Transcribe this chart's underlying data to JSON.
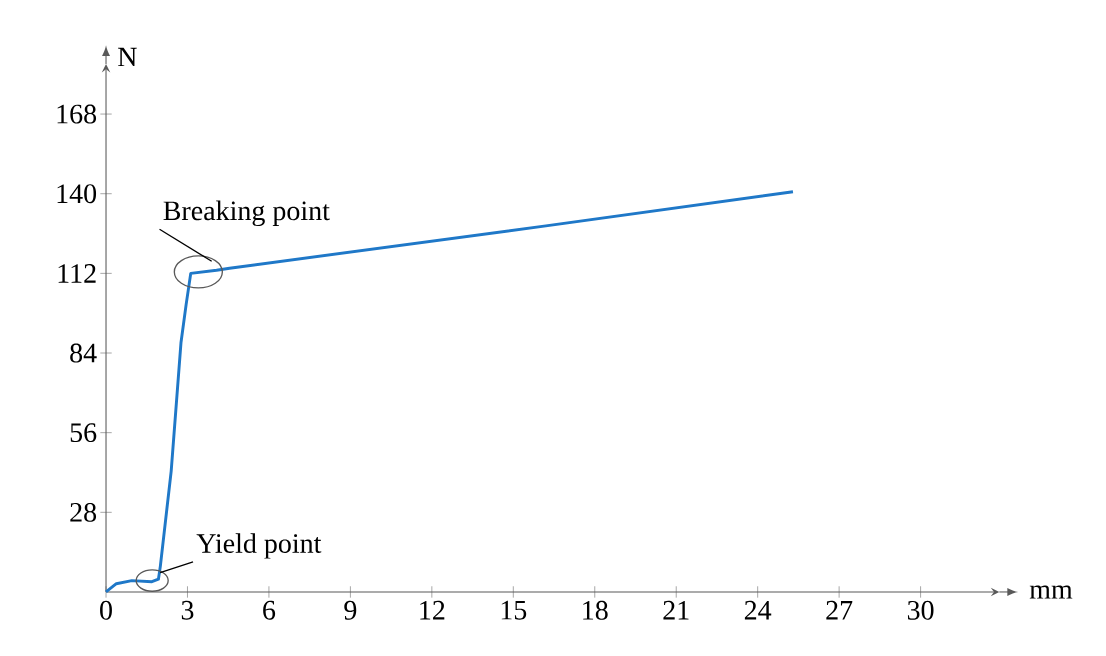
{
  "chart_data": {
    "type": "line",
    "xlabel": "mm",
    "ylabel": "N",
    "x": [
      0,
      0.38,
      0.95,
      1.69,
      1.93,
      2.0,
      2.4,
      2.76,
      2.95,
      3.12,
      4.07,
      4.55,
      16.2,
      25.3
    ],
    "series": [
      {
        "color": "#1f78c8",
        "values": [
          0,
          2.9,
          4,
          3.6,
          4.5,
          9,
          42.5,
          87.6,
          101,
          112,
          113.1,
          113.8,
          128.7,
          140.7
        ]
      }
    ],
    "xlim": [
      0,
      32.9
    ],
    "ylim": [
      0,
      185.6
    ],
    "xticks": [
      {
        "value": 0,
        "label": "0"
      },
      3,
      6,
      9,
      12,
      15,
      18,
      21,
      24,
      27,
      30
    ],
    "yticks": [
      28,
      56,
      84,
      112,
      140,
      168
    ],
    "annotations": [
      {
        "text": "Breaking point",
        "x": 3.4,
        "y": 112.5
      },
      {
        "text": "Yield point",
        "x": 1.7,
        "y": 4
      }
    ],
    "grid": false,
    "marker": "none",
    "line_style": "solid"
  }
}
